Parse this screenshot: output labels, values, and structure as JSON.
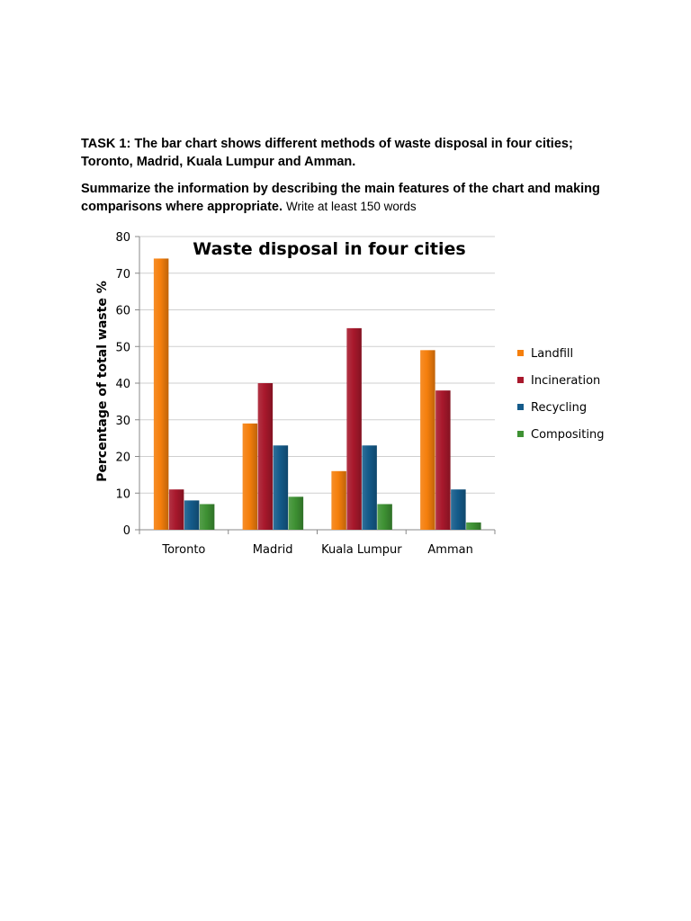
{
  "task": {
    "line1": "TASK 1: The bar chart shows different methods of waste disposal in four cities; Toronto, Madrid, Kuala Lumpur and Amman.",
    "line2_bold": "Summarize the information by describing the main features of the chart and making comparisons where appropriate.",
    "line2_normal": "Write at least 150 words"
  },
  "chart_data": {
    "type": "bar",
    "title": "Waste disposal in four cities",
    "xlabel": "",
    "ylabel": "Percentage of total waste %",
    "ylim": [
      0,
      80
    ],
    "yticks": [
      0,
      10,
      20,
      30,
      40,
      50,
      60,
      70,
      80
    ],
    "grid": true,
    "legend_position": "right",
    "categories": [
      "Toronto",
      "Madrid",
      "Kuala Lumpur",
      "Amman"
    ],
    "series": [
      {
        "name": "Landfill",
        "color": "#f57f0c",
        "values": [
          74,
          29,
          16,
          49
        ]
      },
      {
        "name": "Incineration",
        "color": "#a8182c",
        "values": [
          11,
          40,
          55,
          38
        ]
      },
      {
        "name": "Recycling",
        "color": "#145b8a",
        "values": [
          8,
          23,
          23,
          11
        ]
      },
      {
        "name": "Compositing",
        "color": "#3e9133",
        "values": [
          7,
          9,
          7,
          2
        ]
      }
    ]
  }
}
